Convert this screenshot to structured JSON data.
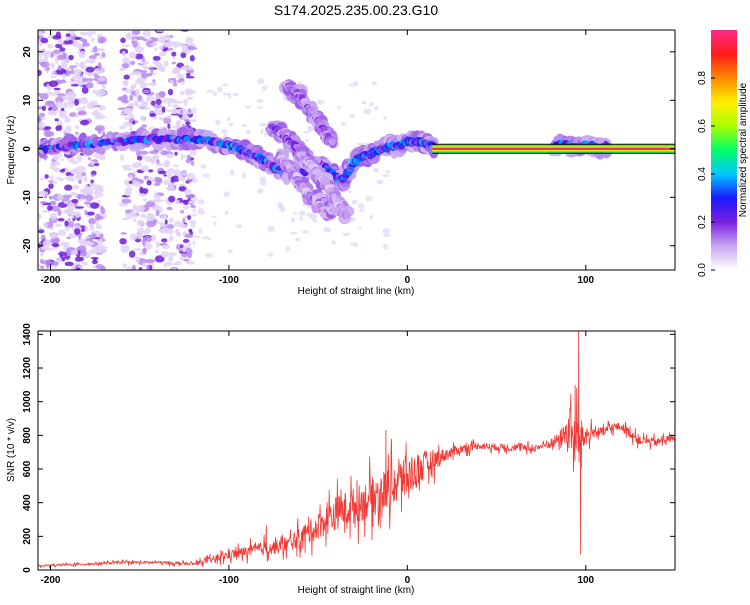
{
  "chart_data": [
    {
      "type": "heatmap",
      "title": "S174.2025.235.00.23.G10",
      "xlabel": "Height of straight line (km)",
      "ylabel": "Frequency (Hz)",
      "xlim": [
        -207,
        150
      ],
      "ylim": [
        -25,
        24.5
      ],
      "xticks": [
        -200,
        -100,
        0,
        100
      ],
      "yticks": [
        -20,
        -10,
        0,
        10,
        20
      ],
      "colorbar": {
        "label": "Normalized spectral amplitude",
        "range": [
          0,
          1
        ],
        "ticks": [
          0.0,
          0.2,
          0.4,
          0.6,
          0.8
        ],
        "colors": [
          "#ffffff",
          "#c9a6f2",
          "#7b1fe0",
          "#1a1aff",
          "#00c8ff",
          "#00ff66",
          "#aaff00",
          "#ffee00",
          "#ff8800",
          "#ff1a1a",
          "#ff2a8a"
        ]
      },
      "features": [
        {
          "name": "main-trace",
          "x": [
            -205,
            -190,
            -175,
            -160,
            -145,
            -130,
            -118,
            -108,
            -98,
            -90,
            -82,
            -74,
            -66,
            -60,
            -55,
            -50,
            -44,
            -40,
            -36,
            -32,
            -28,
            -24,
            -20,
            -15,
            -10,
            -5,
            0,
            5,
            10,
            14
          ],
          "y": [
            0,
            0.5,
            1,
            1.5,
            2,
            2,
            2,
            1.5,
            0.5,
            -0.5,
            -2,
            -4,
            -5,
            -5,
            -4,
            -3,
            -4.5,
            -6,
            -6.5,
            -4,
            -2,
            -1.5,
            -1,
            0,
            0.5,
            0.5,
            1.5,
            1.5,
            1,
            0.5
          ],
          "peak": 0.3
        },
        {
          "name": "upper-branch-1",
          "x": [
            -68,
            -62,
            -56,
            -50,
            -45,
            -42
          ],
          "y": [
            13,
            11.5,
            9,
            6,
            3,
            1
          ],
          "peak": 0.15
        },
        {
          "name": "upper-branch-2",
          "x": [
            -76,
            -70,
            -64,
            -58,
            -52
          ],
          "y": [
            4.5,
            3,
            1,
            -1.5,
            -3.5
          ],
          "peak": 0.18
        },
        {
          "name": "lower-branch-1",
          "x": [
            -72,
            -64,
            -56,
            -48,
            -42
          ],
          "y": [
            -1,
            -5,
            -9,
            -12,
            -13
          ],
          "peak": 0.12
        },
        {
          "name": "lower-branch-2",
          "x": [
            -60,
            -52,
            -44,
            -38,
            -34
          ],
          "y": [
            -1,
            -4,
            -8,
            -12,
            -14
          ],
          "peak": 0.1
        },
        {
          "name": "carrier",
          "x": [
            14,
            150
          ],
          "y": [
            0,
            0
          ],
          "peak": 1.0
        },
        {
          "name": "cluster-85-110",
          "x": [
            82,
            88,
            94,
            100,
            106,
            112
          ],
          "y": [
            0.5,
            1,
            0.3,
            0.8,
            0.2,
            0.5
          ],
          "peak": 0.3
        }
      ],
      "noise_bands": [
        [
          -207,
          -170
        ],
        [
          -160,
          -120
        ]
      ]
    },
    {
      "type": "line",
      "xlabel": "Height of straight line (km)",
      "ylabel": "SNR (10 * v/v)",
      "xlim": [
        -207,
        150
      ],
      "ylim": [
        0,
        1420
      ],
      "xticks": [
        -200,
        -100,
        0,
        100
      ],
      "yticks": [
        0,
        200,
        400,
        600,
        800,
        1000,
        1200,
        1400
      ],
      "series": [
        {
          "name": "SNR",
          "color": "#ef3a36",
          "envelope": {
            "x": [
              -207,
              -180,
              -160,
              -140,
              -120,
              -110,
              -100,
              -90,
              -80,
              -70,
              -60,
              -50,
              -40,
              -30,
              -20,
              -10,
              0,
              10,
              20,
              30,
              40,
              50,
              60,
              70,
              80,
              85,
              90,
              95,
              100,
              105,
              110,
              115,
              120,
              130,
              140,
              150
            ],
            "base": [
              25,
              35,
              45,
              45,
              35,
              60,
              90,
              110,
              130,
              140,
              190,
              260,
              340,
              380,
              430,
              490,
              560,
              620,
              680,
              720,
              740,
              730,
              730,
              720,
              750,
              780,
              820,
              760,
              800,
              820,
              820,
              850,
              850,
              770,
              760,
              790
            ],
            "amp": [
              12,
              15,
              18,
              18,
              20,
              40,
              60,
              70,
              90,
              90,
              130,
              170,
              220,
              240,
              260,
              280,
              280,
              200,
              90,
              55,
              45,
              45,
              45,
              45,
              60,
              90,
              200,
              380,
              120,
              70,
              60,
              60,
              55,
              55,
              50,
              45
            ]
          },
          "spikes": [
            {
              "x": -79,
              "y": 265
            },
            {
              "x": -45,
              "y": 400
            },
            {
              "x": -12,
              "y": 830
            },
            {
              "x": 94,
              "y": 1100
            },
            {
              "x": 96,
              "y": 1420
            },
            {
              "x": 97,
              "y": 95
            }
          ]
        }
      ]
    }
  ]
}
